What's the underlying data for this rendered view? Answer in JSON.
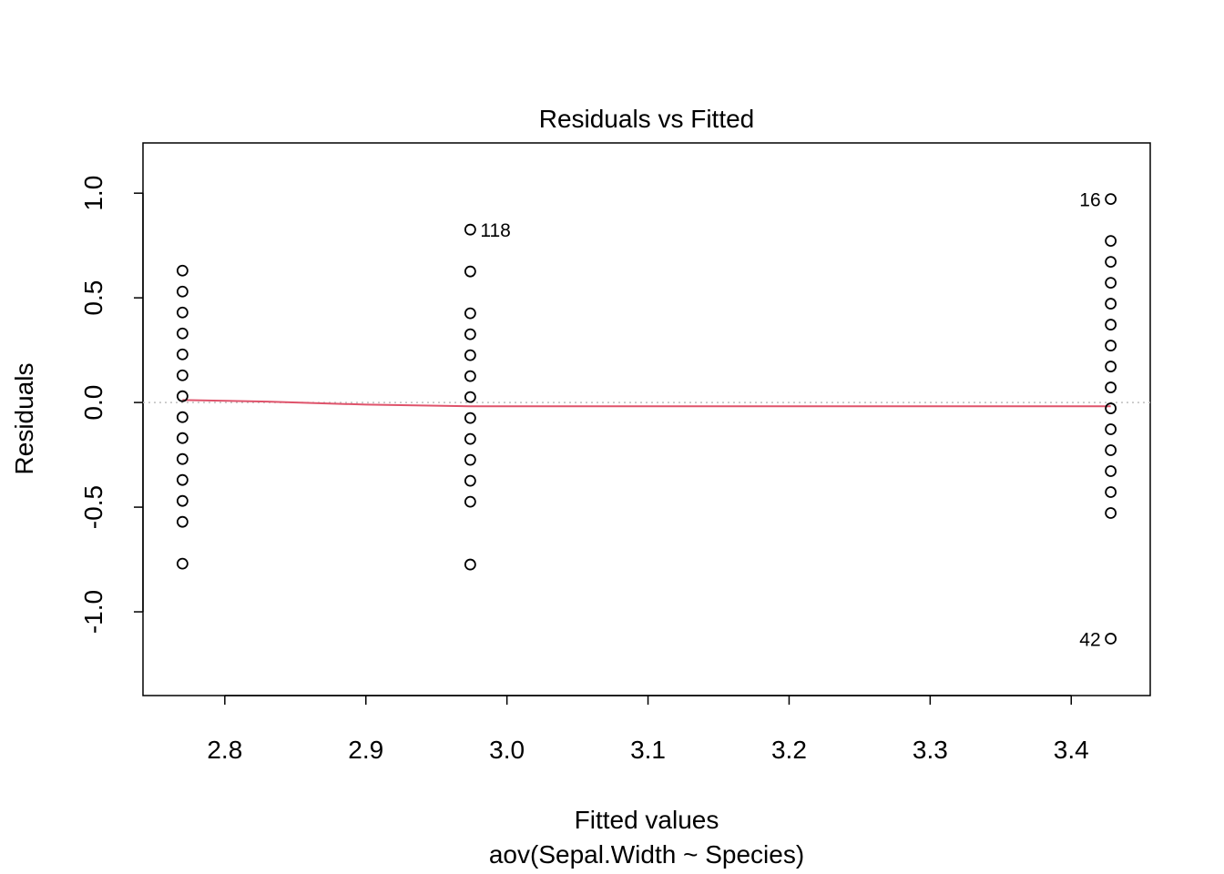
{
  "chart_data": {
    "type": "scatter",
    "title": "Residuals vs Fitted",
    "xlabel": "Fitted values",
    "subtitle": "aov(Sepal.Width ~ Species)",
    "ylabel": "Residuals",
    "xlim": [
      2.742,
      3.456
    ],
    "ylim": [
      -1.4,
      1.24
    ],
    "x_ticks": [
      2.8,
      2.9,
      3.0,
      3.1,
      3.2,
      3.3,
      3.4
    ],
    "x_tick_labels": [
      "2.8",
      "2.9",
      "3.0",
      "3.1",
      "3.2",
      "3.3",
      "3.4"
    ],
    "y_ticks": [
      -1.0,
      -0.5,
      0.0,
      0.5,
      1.0
    ],
    "y_tick_labels": [
      "-1.0",
      "-0.5",
      "0.0",
      "0.5",
      "1.0"
    ],
    "groups": [
      {
        "fitted": 2.77,
        "residuals": [
          0.63,
          0.53,
          0.43,
          0.33,
          0.23,
          0.13,
          0.03,
          -0.07,
          -0.17,
          -0.27,
          -0.37,
          -0.47,
          -0.57,
          -0.77
        ]
      },
      {
        "fitted": 2.974,
        "residuals": [
          0.826,
          0.626,
          0.426,
          0.326,
          0.226,
          0.126,
          0.026,
          -0.074,
          -0.174,
          -0.274,
          -0.374,
          -0.474,
          -0.774
        ]
      },
      {
        "fitted": 3.428,
        "residuals": [
          0.972,
          0.772,
          0.672,
          0.572,
          0.472,
          0.372,
          0.272,
          0.172,
          0.072,
          -0.028,
          -0.128,
          -0.228,
          -0.328,
          -0.428,
          -0.528,
          -1.128
        ]
      }
    ],
    "labeled_points": [
      {
        "label": "118",
        "x": 2.974,
        "y": 0.826,
        "side": "right"
      },
      {
        "label": "16",
        "x": 3.428,
        "y": 0.972,
        "side": "left"
      },
      {
        "label": "42",
        "x": 3.428,
        "y": -1.128,
        "side": "left"
      }
    ],
    "smooth_line": {
      "x": [
        2.77,
        2.83,
        2.9,
        2.974,
        3.2,
        3.428
      ],
      "y": [
        0.012,
        0.004,
        -0.01,
        -0.018,
        -0.018,
        -0.018
      ]
    },
    "reference_line_y": 0,
    "colors": {
      "points": "#000000",
      "smooth_line": "#DF536B",
      "reference_line": "#BEBEBE"
    },
    "grid": false
  }
}
